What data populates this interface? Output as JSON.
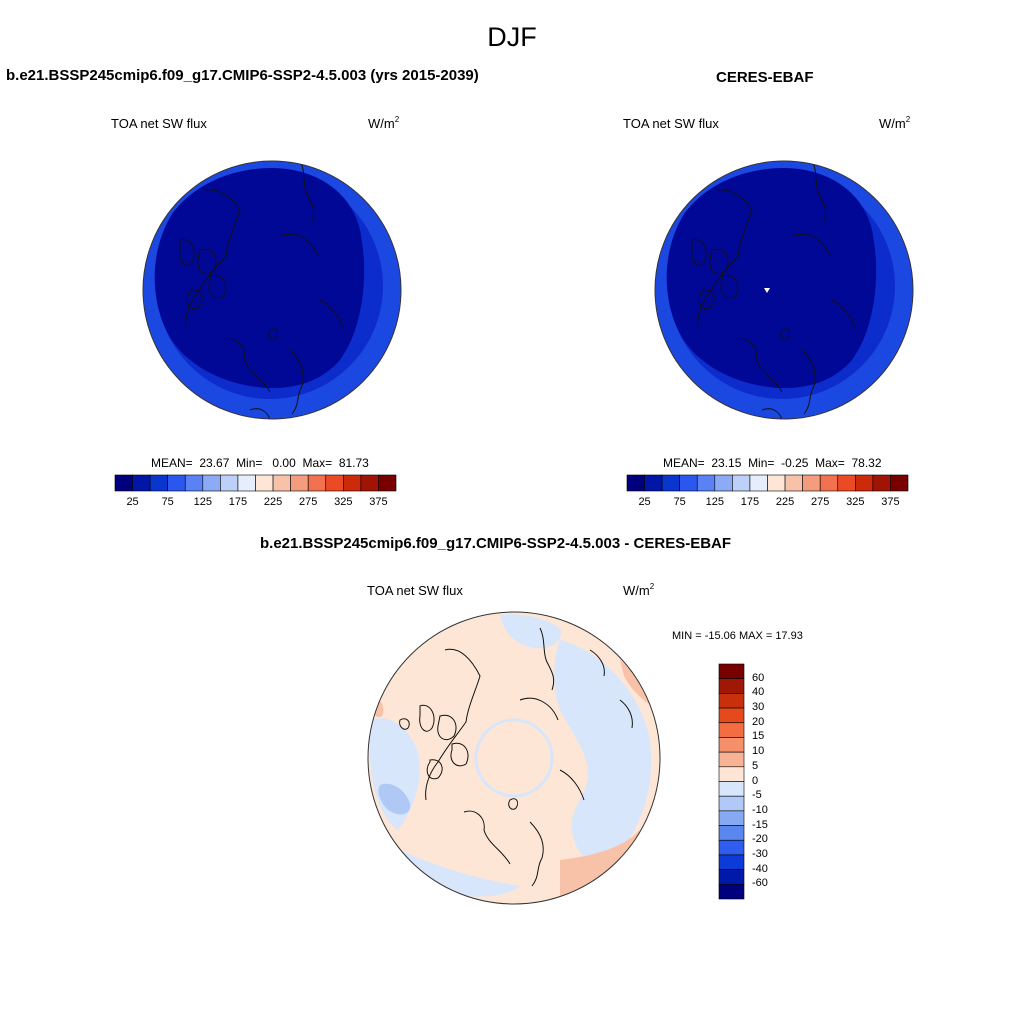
{
  "title": "DJF",
  "panels": [
    {
      "id": "model",
      "title": "b.e21.BSSP245cmip6.f09_g17.CMIP6-SSP2-4.5.003 (yrs 2015-2039)",
      "variable": "TOA net SW flux",
      "units_base": "W/m",
      "units_exp": "2",
      "stats": {
        "mean_label": "MEAN=",
        "mean": "23.67",
        "min_label": "Min=",
        "min": "0.00",
        "max_label": "Max=",
        "max": "81.73"
      }
    },
    {
      "id": "obs",
      "title": "CERES-EBAF",
      "variable": "TOA net SW flux",
      "units_base": "W/m",
      "units_exp": "2",
      "stats": {
        "mean_label": "MEAN=",
        "mean": "23.15",
        "min_label": "Min=",
        "min": "-0.25",
        "max_label": "Max=",
        "max": "78.32"
      }
    },
    {
      "id": "diff",
      "title": "b.e21.BSSP245cmip6.f09_g17.CMIP6-SSP2-4.5.003 - CERES-EBAF",
      "variable": "TOA net SW flux",
      "units_base": "W/m",
      "units_exp": "2",
      "stats_text": "MIN = -15.06 MAX =  17.93"
    }
  ],
  "colorbar_main": {
    "colors": [
      "#00007f",
      "#0016a6",
      "#0a35cf",
      "#2a58ef",
      "#5a82f4",
      "#8daaf6",
      "#bdd0f8",
      "#e6edfb",
      "#fde6d6",
      "#f8c2a8",
      "#f59c7e",
      "#f2724f",
      "#ec4a24",
      "#cc2a0b",
      "#a11305",
      "#780000"
    ],
    "tick_labels": [
      "25",
      "75",
      "125",
      "175",
      "225",
      "275",
      "325",
      "375"
    ]
  },
  "colorbar_diff": {
    "colors": [
      "#780000",
      "#a01705",
      "#c82f0b",
      "#e64a1c",
      "#f36c42",
      "#f6906b",
      "#f8b294",
      "#fde6d6",
      "#d8e6fb",
      "#b0c9f7",
      "#87a9f4",
      "#5a86f0",
      "#2f5ded",
      "#0d3bd8",
      "#0019a8",
      "#00007f"
    ],
    "tick_labels": [
      "60",
      "40",
      "30",
      "20",
      "15",
      "10",
      "5",
      "0",
      "-5",
      "-10",
      "-15",
      "-20",
      "-30",
      "-40",
      "-60"
    ]
  },
  "map_fields": {
    "outer_ring_color": "#1c48e2",
    "middle_ring_color": "#0d2ccc",
    "inner_disc_color": "#010896",
    "diff_background_color": "#fde6d6",
    "diff_negative_color": "#d7e6fb",
    "diff_positive_color": "#f8c2a8",
    "diff_strong_negative_color": "#afc8f6"
  }
}
